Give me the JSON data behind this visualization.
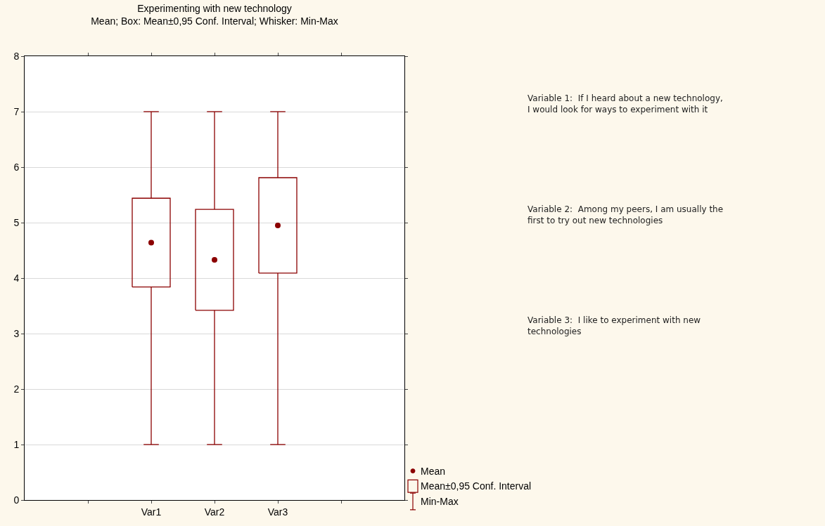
{
  "chart_data": {
    "type": "box",
    "title": "Experimenting with new technology",
    "subtitle": "Mean; Box: Mean±0,95 Conf. Interval; Whisker: Min-Max",
    "categories": [
      null,
      "Var1",
      "Var2",
      "Var3",
      null
    ],
    "boxes": [
      null,
      {
        "low": 1,
        "q1": 3.84,
        "q3": 5.44,
        "high": 7,
        "mean": 4.64
      },
      {
        "low": 1,
        "q1": 3.42,
        "q3": 5.24,
        "high": 7,
        "mean": 4.33
      },
      {
        "low": 1,
        "q1": 4.09,
        "q3": 5.81,
        "high": 7,
        "mean": 4.95
      },
      null
    ],
    "color": "#8b0000",
    "ylim": [
      0,
      8
    ],
    "yticks": [
      0,
      1,
      2,
      3,
      4,
      5,
      6,
      7,
      8
    ],
    "grid": "y",
    "annotations": [
      "Variable 1:  If I heard about a new technology,\nI would look for ways to experiment with it",
      "Variable 2:  Among my peers, I am usually the\nfirst to try out new technologies",
      "Variable 3:  I like to experiment with new\ntechnologies",
      "Mean",
      "Mean±0,95 Conf. Interval",
      "Min-Max"
    ]
  }
}
